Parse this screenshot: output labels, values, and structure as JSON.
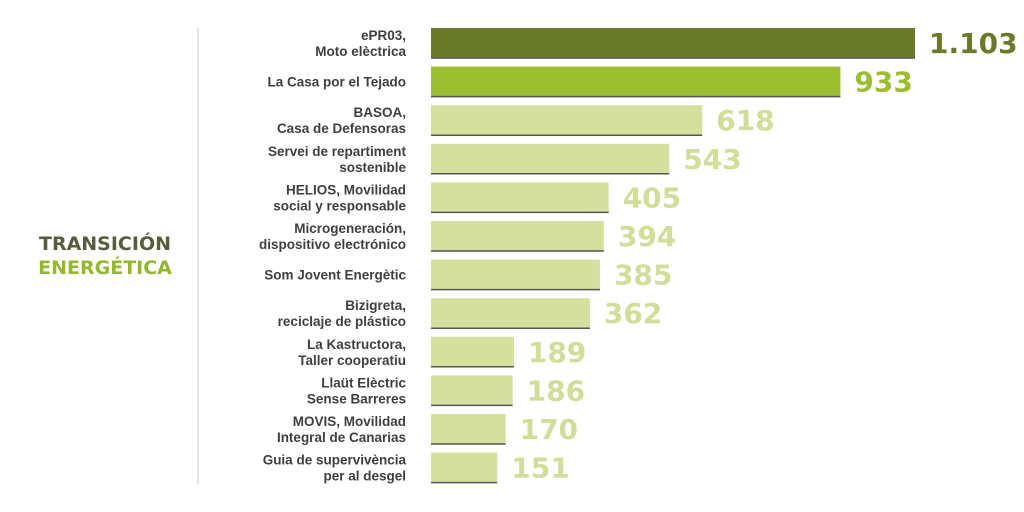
{
  "section": {
    "title_line1": "TRANSICIÓN",
    "title_line2": "ENERGÉTICA"
  },
  "colors": {
    "top1": "#6b7a2a",
    "top2": "#9bbd2f",
    "rest": "#d6e09e",
    "value_top1": "#6b7a2a",
    "value_top2": "#9bbd2f",
    "value_rest": "#d3dd99",
    "divider": "#c8c8c8",
    "bar_baseline": "#555555"
  },
  "chart_data": {
    "type": "bar",
    "orientation": "horizontal",
    "categories": [
      [
        "ePR03,",
        "Moto elèctrica"
      ],
      [
        "La Casa por el Tejado"
      ],
      [
        "BASOA,",
        "Casa de Defensoras"
      ],
      [
        "Servei de repartiment",
        "sostenible"
      ],
      [
        "HELIOS, Movilidad",
        "social y responsable"
      ],
      [
        "Microgeneración,",
        "dispositivo electrónico"
      ],
      [
        "Som Jovent Energètic"
      ],
      [
        "Bizigreta,",
        "reciclaje de plástico"
      ],
      [
        "La Kastructora,",
        "Taller cooperatiu"
      ],
      [
        "Llaüt Elèctric",
        "Sense Barreres"
      ],
      [
        "MOVIS, Movilidad",
        "Integral de Canarias"
      ],
      [
        "Guia de supervivència",
        "per al desgel"
      ]
    ],
    "values": [
      1103,
      933,
      618,
      543,
      405,
      394,
      385,
      362,
      189,
      186,
      170,
      151
    ],
    "value_labels": [
      "1.103",
      "933",
      "618",
      "543",
      "405",
      "394",
      "385",
      "362",
      "189",
      "186",
      "170",
      "151"
    ],
    "xlim": [
      0,
      1103
    ]
  }
}
